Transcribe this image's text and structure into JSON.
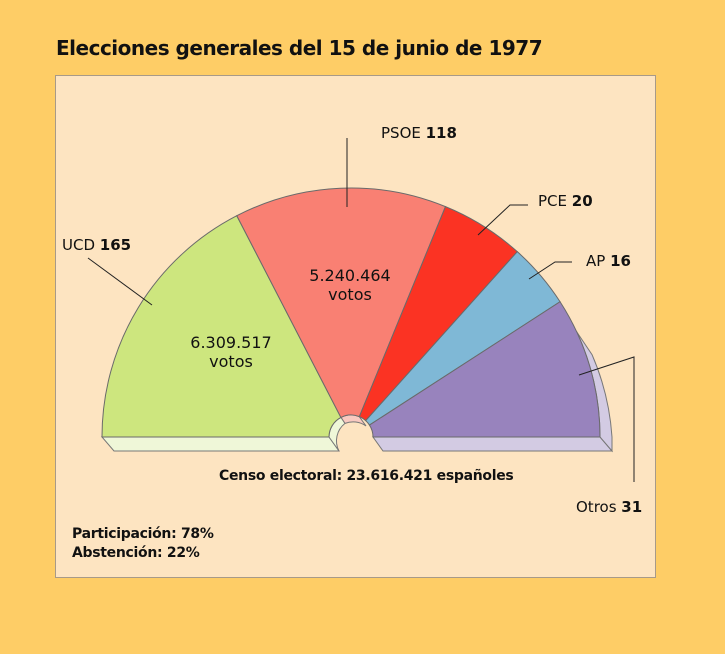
{
  "chart_data": {
    "type": "pie",
    "variant": "parliament-semicircle",
    "title": "Elecciones generales del 15 de junio de 1977",
    "series": [
      {
        "name": "UCD",
        "seats": 165,
        "votes_label": "6.309.517",
        "votes_unit": "votos",
        "color": "#cde67e",
        "side": "#eff7d8"
      },
      {
        "name": "PSOE",
        "seats": 118,
        "votes_label": "5.240.464",
        "votes_unit": "votos",
        "color": "#f98073",
        "side": "#f9c9c0"
      },
      {
        "name": "PCE",
        "seats": 20,
        "color": "#fb3323",
        "side": "#fb9a90"
      },
      {
        "name": "AP",
        "seats": 16,
        "color": "#7fb8d6",
        "side": "#c8e0ec"
      },
      {
        "name": "Otros",
        "seats": 31,
        "color": "#9883bd",
        "side": "#d3cbe3"
      }
    ],
    "annotations": {
      "census": "Censo electoral: 23.616.421 españoles",
      "participation": "Participación: 78%",
      "abstention": "Abstención: 22%"
    }
  }
}
